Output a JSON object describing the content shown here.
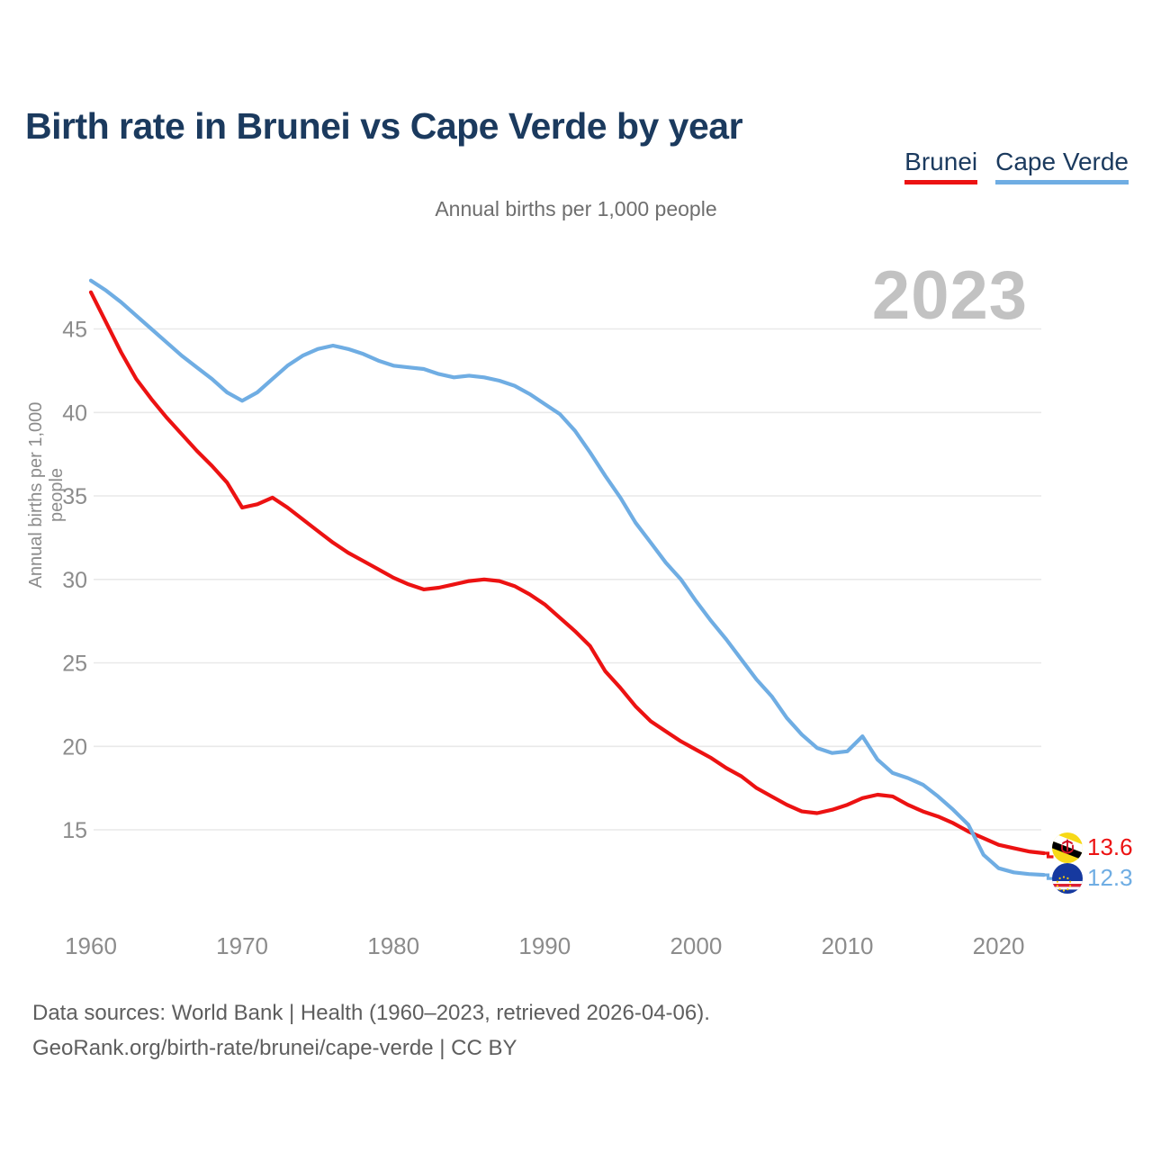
{
  "title": "Birth rate in Brunei vs Cape Verde by year",
  "subtitle": "Annual births per 1,000 people",
  "watermark": "2023",
  "y_axis_title": "Annual births per 1,000 people",
  "legend": [
    {
      "label": "Brunei",
      "color": "#ec1212"
    },
    {
      "label": "Cape Verde",
      "color": "#6fade3"
    }
  ],
  "colors": {
    "title_text": "#1b3a5e",
    "brunei_line": "#ec1212",
    "cape_verde_line": "#6fade3",
    "gridline": "#e9e9e9",
    "tick_label": "#8c8c8c",
    "watermark": "#c2c2c2"
  },
  "end_labels": {
    "brunei": {
      "value": "13.6"
    },
    "cape_verde": {
      "value": "12.3"
    }
  },
  "footer": {
    "line1": "Data sources: World Bank | Health (1960–2023, retrieved 2026-04-06).",
    "line2": "GeoRank.org/birth-rate/brunei/cape-verde | CC BY"
  },
  "chart_data": {
    "type": "line",
    "title": "Birth rate in Brunei vs Cape Verde by year",
    "ylabel": "Annual births per 1,000 people",
    "xlabel": "",
    "grid": "horizontal",
    "legend_position": "top-right",
    "xlim": [
      1960,
      2023
    ],
    "ylim": [
      11.5,
      48.5
    ],
    "xticks": [
      1960,
      1970,
      1980,
      1990,
      2000,
      2010,
      2020
    ],
    "yticks": [
      15,
      20,
      25,
      30,
      35,
      40,
      45
    ],
    "x": [
      1960,
      1961,
      1962,
      1963,
      1964,
      1965,
      1966,
      1967,
      1968,
      1969,
      1970,
      1971,
      1972,
      1973,
      1974,
      1975,
      1976,
      1977,
      1978,
      1979,
      1980,
      1981,
      1982,
      1983,
      1984,
      1985,
      1986,
      1987,
      1988,
      1989,
      1990,
      1991,
      1992,
      1993,
      1994,
      1995,
      1996,
      1997,
      1998,
      1999,
      2000,
      2001,
      2002,
      2003,
      2004,
      2005,
      2006,
      2007,
      2008,
      2009,
      2010,
      2011,
      2012,
      2013,
      2014,
      2015,
      2016,
      2017,
      2018,
      2019,
      2020,
      2021,
      2022,
      2023
    ],
    "series": [
      {
        "name": "Brunei",
        "color": "#ec1212",
        "end_value": 13.6,
        "values": [
          47.2,
          45.4,
          43.6,
          42.0,
          40.8,
          39.7,
          38.7,
          37.7,
          36.8,
          35.8,
          34.3,
          34.5,
          34.9,
          34.3,
          33.6,
          32.9,
          32.2,
          31.6,
          31.1,
          30.6,
          30.1,
          29.7,
          29.4,
          29.5,
          29.7,
          29.9,
          30.0,
          29.9,
          29.6,
          29.1,
          28.5,
          27.7,
          26.9,
          26.0,
          24.5,
          23.5,
          22.4,
          21.5,
          20.9,
          20.3,
          19.8,
          19.3,
          18.7,
          18.2,
          17.5,
          17.0,
          16.5,
          16.1,
          16.0,
          16.2,
          16.5,
          16.9,
          17.1,
          17.0,
          16.5,
          16.1,
          15.8,
          15.4,
          14.9,
          14.5,
          14.1,
          13.9,
          13.7,
          13.6
        ]
      },
      {
        "name": "Cape Verde",
        "color": "#6fade3",
        "end_value": 12.3,
        "values": [
          47.9,
          47.3,
          46.6,
          45.8,
          45.0,
          44.2,
          43.4,
          42.7,
          42.0,
          41.2,
          40.7,
          41.2,
          42.0,
          42.8,
          43.4,
          43.8,
          44.0,
          43.8,
          43.5,
          43.1,
          42.8,
          42.7,
          42.6,
          42.3,
          42.1,
          42.2,
          42.1,
          41.9,
          41.6,
          41.1,
          40.5,
          39.9,
          38.9,
          37.6,
          36.2,
          34.9,
          33.4,
          32.2,
          31.0,
          30.0,
          28.7,
          27.5,
          26.4,
          25.2,
          24.0,
          23.0,
          21.7,
          20.7,
          19.9,
          19.6,
          19.7,
          20.6,
          19.2,
          18.4,
          18.1,
          17.7,
          17.0,
          16.2,
          15.3,
          13.5,
          12.7,
          12.45,
          12.35,
          12.3
        ]
      }
    ]
  }
}
